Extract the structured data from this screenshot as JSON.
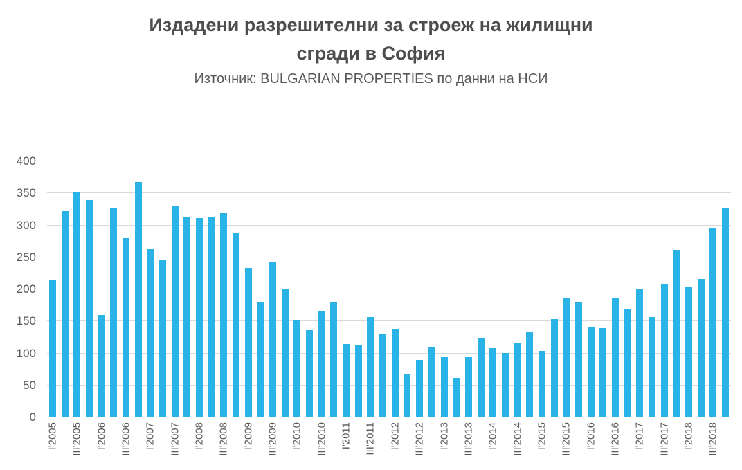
{
  "chart_data": {
    "type": "bar",
    "title": "Издадени разрешителни за строеж на жилищни сгради в София",
    "title_lines": [
      "Издадени разрешителни за строеж на жилищни",
      "сгради в София"
    ],
    "subtitle": "Източник: BULGARIAN PROPERTIES по данни на НСИ",
    "bar_color": "#29b3e6",
    "grid_color": "#d9d9d9",
    "axis_text_color": "#595959",
    "ylim": [
      0,
      400
    ],
    "ytick_step": 50,
    "yticks": [
      0,
      50,
      100,
      150,
      200,
      250,
      300,
      350,
      400
    ],
    "xtick_labels": [
      "I'2005",
      "III'2005",
      "I'2006",
      "III'2006",
      "I'2007",
      "III'2007",
      "I'2008",
      "III'2008",
      "I'2009",
      "III'2009",
      "I'2010",
      "III'2010",
      "I'2011",
      "III'2011",
      "I'2012",
      "III'2012",
      "I'2013",
      "III'2013",
      "I'2014",
      "III'2014",
      "I'2015",
      "III'2015",
      "I'2016",
      "III'2016",
      "I'2017",
      "III'2017",
      "I'2018",
      "III'2018"
    ],
    "xtick_note": "labels shown on every second quarterly bar (quarters I and III)",
    "values": [
      215,
      322,
      352,
      340,
      160,
      328,
      280,
      368,
      263,
      245,
      330,
      312,
      311,
      313,
      319,
      288,
      233,
      181,
      242,
      201,
      151,
      136,
      167,
      181,
      115,
      112,
      157,
      130,
      137,
      68,
      90,
      110,
      94,
      62,
      94,
      124,
      108,
      101,
      117,
      133,
      104,
      154,
      187,
      180,
      141,
      140,
      186,
      170,
      200,
      157,
      208,
      262,
      204,
      216,
      296,
      328
    ],
    "legend": null,
    "grid": true
  }
}
